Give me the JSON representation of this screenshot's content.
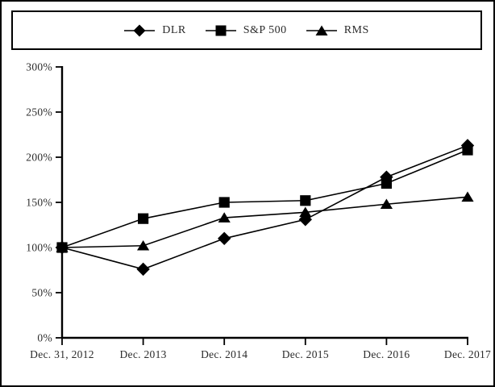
{
  "legend": {
    "items": [
      {
        "label": "DLR",
        "marker": "diamond"
      },
      {
        "label": "S&P 500",
        "marker": "square"
      },
      {
        "label": "RMS",
        "marker": "triangle"
      }
    ]
  },
  "chart_data": {
    "type": "line",
    "title": "",
    "xlabel": "",
    "ylabel": "",
    "categories": [
      "Dec. 31, 2012",
      "Dec. 2013",
      "Dec. 2014",
      "Dec. 2015",
      "Dec. 2016",
      "Dec. 2017"
    ],
    "series": [
      {
        "name": "DLR",
        "marker": "diamond",
        "values": [
          100,
          76,
          110,
          131,
          178,
          213
        ]
      },
      {
        "name": "S&P 500",
        "marker": "square",
        "values": [
          100,
          132,
          150,
          152,
          171,
          208
        ]
      },
      {
        "name": "RMS",
        "marker": "triangle",
        "values": [
          100,
          102,
          133,
          139,
          148,
          156
        ]
      }
    ],
    "y_axis": {
      "min": 0,
      "max": 300,
      "step": 50,
      "tick_labels": [
        "0%",
        "50%",
        "100%",
        "150%",
        "200%",
        "250%",
        "300%"
      ]
    },
    "legend_position": "top",
    "grid": false,
    "line_color": "#000000",
    "marker_color": "#000000",
    "background_color": "#ffffff"
  }
}
